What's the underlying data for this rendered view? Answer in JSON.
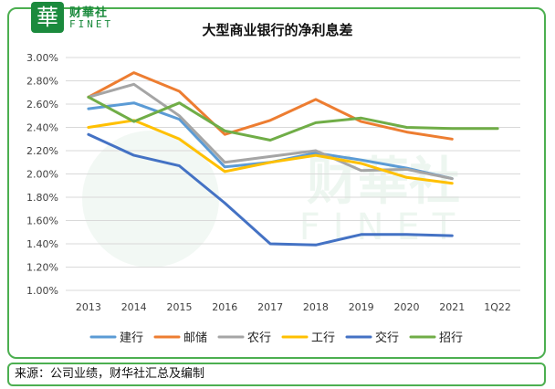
{
  "logo": {
    "badge_char": "華",
    "name_cn": "财華社",
    "name_en": "FINET"
  },
  "watermark": {
    "name_cn": "财華社",
    "name_en": "FINET"
  },
  "source_note": "来源：公司业绩，财华社汇总及编制",
  "chart_data": {
    "type": "line",
    "title": "大型商业银行的净利息差",
    "xlabel": "",
    "ylabel": "",
    "categories": [
      "2013",
      "2014",
      "2015",
      "2016",
      "2017",
      "2018",
      "2019",
      "2020",
      "2021",
      "1Q22"
    ],
    "ylim": [
      1.0,
      3.0
    ],
    "yticks": [
      "1.00%",
      "1.20%",
      "1.40%",
      "1.60%",
      "1.80%",
      "2.00%",
      "2.20%",
      "2.40%",
      "2.60%",
      "2.80%",
      "3.00%"
    ],
    "grid": true,
    "legend_position": "bottom",
    "series": [
      {
        "name": "建行",
        "color": "#5b9bd5",
        "values": [
          2.56,
          2.61,
          2.47,
          2.06,
          2.1,
          2.18,
          2.12,
          2.05,
          1.96,
          null
        ]
      },
      {
        "name": "邮储",
        "color": "#ed7d31",
        "values": [
          2.66,
          2.87,
          2.71,
          2.34,
          2.46,
          2.64,
          2.45,
          2.36,
          2.3,
          null
        ]
      },
      {
        "name": "农行",
        "color": "#a5a5a5",
        "values": [
          2.66,
          2.77,
          2.5,
          2.1,
          2.15,
          2.2,
          2.03,
          2.04,
          1.96,
          null
        ]
      },
      {
        "name": "工行",
        "color": "#ffc000",
        "values": [
          2.4,
          2.46,
          2.3,
          2.02,
          2.1,
          2.16,
          2.09,
          1.97,
          1.92,
          null
        ]
      },
      {
        "name": "交行",
        "color": "#4472c4",
        "values": [
          2.34,
          2.16,
          2.07,
          1.75,
          1.4,
          1.39,
          1.48,
          1.48,
          1.47,
          null
        ]
      },
      {
        "name": "招行",
        "color": "#70ad47",
        "values": [
          2.66,
          2.45,
          2.61,
          2.37,
          2.29,
          2.44,
          2.48,
          2.4,
          2.39,
          2.39
        ]
      }
    ]
  }
}
